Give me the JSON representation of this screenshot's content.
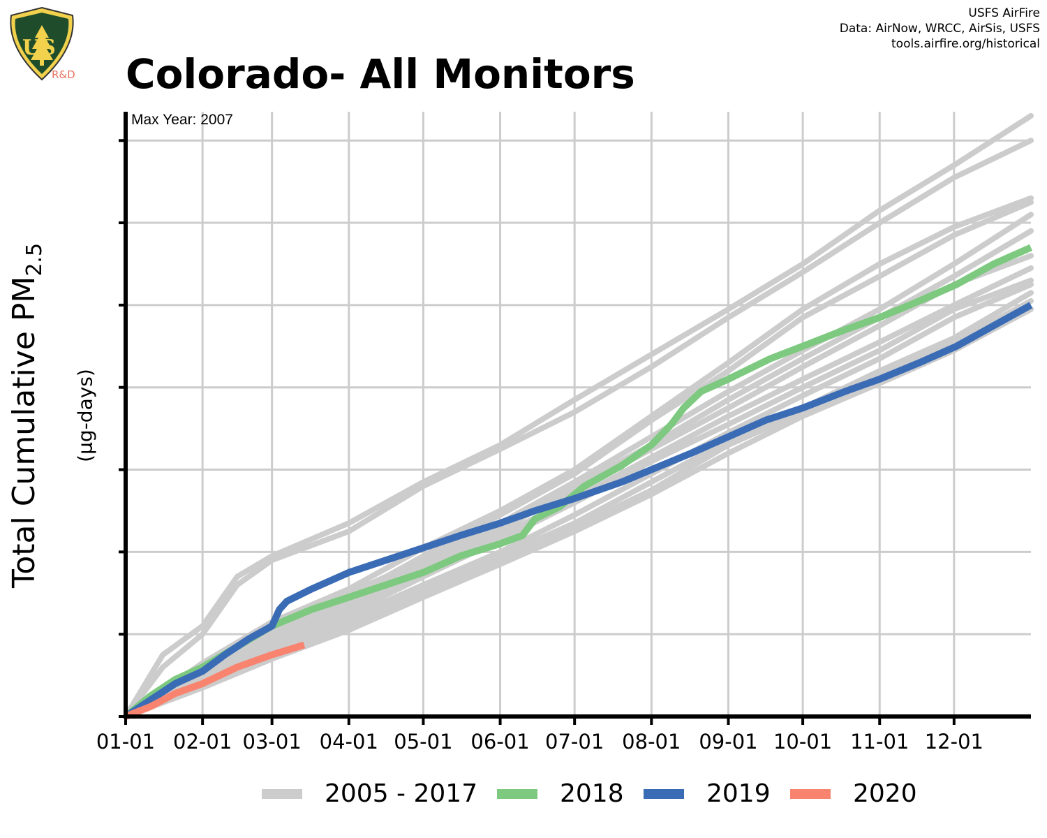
{
  "header": {
    "title": "Colorado- All Monitors",
    "credits": [
      "USFS AirFire",
      "Data: AirNow, WRCC, AirSis, USFS",
      "tools.airfire.org/historical"
    ],
    "logo_text": "US",
    "logo_rd": "R&D"
  },
  "annotation": "Max Year: 2007",
  "colors": {
    "historical": "#cccccc",
    "y2018": "#7dc97f",
    "y2019": "#3a6bb5",
    "y2020": "#f88470",
    "grid": "#cccccc",
    "axis": "#000000"
  },
  "chart_data": {
    "type": "line",
    "title": "Colorado- All Monitors",
    "ylabel_main": "Total Cumulative PM",
    "ylabel_sub": "2.5",
    "ylabel_unit": "(µg-days)",
    "x_ticks": [
      "01-01",
      "02-01",
      "03-01",
      "04-01",
      "05-01",
      "06-01",
      "07-01",
      "08-01",
      "09-01",
      "10-01",
      "11-01",
      "12-01"
    ],
    "x_tick_days": [
      0,
      31,
      59,
      90,
      120,
      151,
      181,
      212,
      243,
      273,
      304,
      334
    ],
    "xlim": [
      0,
      365
    ],
    "ylim": [
      0,
      7.35
    ],
    "y_ticks": [
      0,
      1,
      2,
      3,
      4,
      5,
      6,
      7
    ],
    "y_tick_labels_shown": false,
    "grid": true,
    "legend_position": "bottom",
    "legend": [
      "2005 - 2017",
      "2018",
      "2019",
      "2020"
    ],
    "series": [
      {
        "name": "2018",
        "color_key": "y2018",
        "x": [
          0,
          10,
          20,
          31,
          45,
          59,
          75,
          90,
          105,
          120,
          135,
          151,
          160,
          165,
          175,
          185,
          200,
          212,
          220,
          225,
          232,
          243,
          260,
          273,
          290,
          304,
          320,
          335,
          350,
          365
        ],
        "y": [
          0,
          0.25,
          0.45,
          0.6,
          0.85,
          1.1,
          1.3,
          1.45,
          1.6,
          1.75,
          1.95,
          2.1,
          2.2,
          2.4,
          2.55,
          2.8,
          3.05,
          3.3,
          3.55,
          3.75,
          3.95,
          4.1,
          4.35,
          4.5,
          4.7,
          4.85,
          5.05,
          5.25,
          5.5,
          5.7
        ]
      },
      {
        "name": "2019",
        "color_key": "y2019",
        "x": [
          0,
          10,
          20,
          31,
          40,
          50,
          59,
          62,
          65,
          75,
          90,
          105,
          120,
          135,
          151,
          165,
          181,
          200,
          212,
          228,
          243,
          258,
          273,
          290,
          304,
          320,
          335,
          350,
          365
        ],
        "y": [
          0,
          0.2,
          0.4,
          0.55,
          0.75,
          0.95,
          1.1,
          1.3,
          1.4,
          1.55,
          1.75,
          1.9,
          2.05,
          2.2,
          2.35,
          2.5,
          2.65,
          2.85,
          3.0,
          3.2,
          3.4,
          3.6,
          3.75,
          3.95,
          4.1,
          4.3,
          4.5,
          4.75,
          5.0
        ]
      },
      {
        "name": "2020",
        "color_key": "y2020",
        "x": [
          0,
          10,
          20,
          31,
          45,
          59,
          72
        ],
        "y": [
          0,
          0.12,
          0.28,
          0.4,
          0.6,
          0.75,
          0.87
        ]
      },
      {
        "name": "2005 - 2017",
        "color_key": "historical",
        "group": true,
        "lines": [
          {
            "x": [
              0,
              15,
              31,
              45,
              59,
              90,
              120,
              151,
              181,
              212,
              243,
              273,
              304,
              334,
              365
            ],
            "y": [
              0,
              0.75,
              1.1,
              1.7,
              1.95,
              2.35,
              2.85,
              3.3,
              3.85,
              4.4,
              4.95,
              5.5,
              6.15,
              6.7,
              7.3
            ]
          },
          {
            "x": [
              0,
              15,
              31,
              45,
              59,
              90,
              120,
              151,
              181,
              212,
              243,
              273,
              304,
              334,
              365
            ],
            "y": [
              0,
              0.6,
              1.0,
              1.6,
              1.9,
              2.25,
              2.8,
              3.25,
              3.7,
              4.25,
              4.85,
              5.4,
              6.0,
              6.55,
              7.0
            ]
          },
          {
            "x": [
              0,
              31,
              59,
              90,
              120,
              151,
              181,
              212,
              243,
              273,
              304,
              334,
              365
            ],
            "y": [
              0,
              0.65,
              1.15,
              1.55,
              2.05,
              2.5,
              3.0,
              3.65,
              4.3,
              4.95,
              5.5,
              5.95,
              6.3
            ]
          },
          {
            "x": [
              0,
              31,
              59,
              90,
              120,
              151,
              181,
              212,
              243,
              273,
              304,
              334,
              365
            ],
            "y": [
              0,
              0.55,
              1.05,
              1.45,
              1.95,
              2.45,
              2.95,
              3.6,
              4.2,
              4.85,
              5.35,
              5.85,
              6.25
            ]
          },
          {
            "x": [
              0,
              31,
              59,
              90,
              120,
              151,
              181,
              212,
              243,
              273,
              304,
              334,
              365
            ],
            "y": [
              0,
              0.6,
              1.1,
              1.5,
              1.9,
              2.35,
              2.85,
              3.4,
              3.95,
              4.45,
              4.95,
              5.5,
              6.1
            ]
          },
          {
            "x": [
              0,
              31,
              59,
              90,
              120,
              151,
              181,
              212,
              243,
              273,
              304,
              334,
              365
            ],
            "y": [
              0,
              0.5,
              0.95,
              1.35,
              1.8,
              2.25,
              2.8,
              3.3,
              3.85,
              4.35,
              4.85,
              5.35,
              5.9
            ]
          },
          {
            "x": [
              0,
              31,
              59,
              90,
              120,
              151,
              181,
              212,
              243,
              273,
              304,
              334,
              365
            ],
            "y": [
              0,
              0.45,
              0.85,
              1.25,
              1.7,
              2.15,
              2.6,
              3.1,
              3.55,
              4.0,
              4.45,
              4.95,
              5.3
            ]
          },
          {
            "x": [
              0,
              31,
              59,
              90,
              120,
              151,
              181,
              212,
              243,
              273,
              304,
              334,
              365
            ],
            "y": [
              0,
              0.45,
              0.8,
              1.2,
              1.6,
              2.0,
              2.45,
              2.95,
              3.45,
              3.9,
              4.35,
              4.85,
              5.25
            ]
          },
          {
            "x": [
              0,
              31,
              59,
              90,
              120,
              151,
              181,
              212,
              243,
              273,
              304,
              334,
              365
            ],
            "y": [
              0,
              0.4,
              0.8,
              1.15,
              1.55,
              1.95,
              2.35,
              2.85,
              3.35,
              3.75,
              4.2,
              4.6,
              5.15
            ]
          },
          {
            "x": [
              0,
              31,
              59,
              90,
              120,
              151,
              181,
              212,
              243,
              273,
              304,
              334,
              365
            ],
            "y": [
              0,
              0.4,
              0.75,
              1.1,
              1.5,
              1.9,
              2.3,
              2.75,
              3.3,
              3.7,
              4.15,
              4.55,
              5.05
            ]
          },
          {
            "x": [
              0,
              31,
              59,
              90,
              120,
              151,
              181,
              212,
              243,
              273,
              304,
              334,
              365
            ],
            "y": [
              0,
              0.35,
              0.7,
              1.05,
              1.45,
              1.85,
              2.25,
              2.7,
              3.2,
              3.65,
              4.05,
              4.45,
              4.95
            ]
          },
          {
            "x": [
              0,
              31,
              59,
              90,
              120,
              151,
              181,
              212,
              243,
              273,
              304,
              334,
              365
            ],
            "y": [
              0,
              0.55,
              1.0,
              1.4,
              1.85,
              2.3,
              2.75,
              3.25,
              3.75,
              4.25,
              4.75,
              5.25,
              5.6
            ]
          },
          {
            "x": [
              0,
              31,
              59,
              90,
              120,
              151,
              181,
              212,
              243,
              273,
              304,
              334,
              365
            ],
            "y": [
              0,
              0.5,
              0.9,
              1.3,
              1.75,
              2.2,
              2.65,
              3.15,
              3.65,
              4.1,
              4.55,
              5.0,
              5.45
            ]
          }
        ]
      }
    ]
  }
}
